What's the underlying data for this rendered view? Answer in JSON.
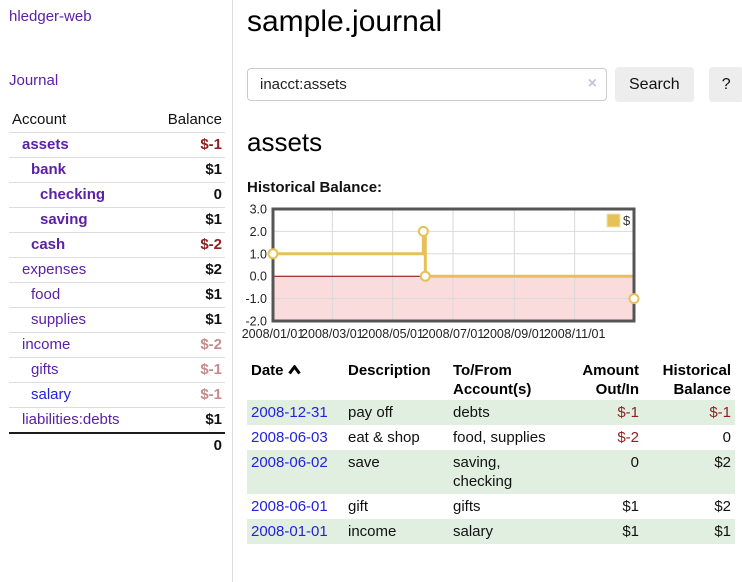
{
  "app_title": "hledger-web",
  "colors": {
    "link_purple": "#5b21a6",
    "link_blue": "#2323d8",
    "negative_red": "#8e1f1f",
    "faded_negative_red": "#c58b8b",
    "row_stripe_green": "#e1efe1",
    "chart_line_gold": "#e6c158",
    "chart_negative_pink": "#fadcdc"
  },
  "sidebar": {
    "journal_link": "Journal",
    "account_header": "Account",
    "balance_header": "Balance",
    "accounts": [
      {
        "name": "assets",
        "balance": "$-1",
        "depth": 0,
        "bold": true,
        "balance_style": "neg"
      },
      {
        "name": "bank",
        "balance": "$1",
        "depth": 1,
        "bold": true,
        "balance_style": "pos"
      },
      {
        "name": "checking",
        "balance": "0",
        "depth": 2,
        "bold": true,
        "balance_style": "pos"
      },
      {
        "name": "saving",
        "balance": "$1",
        "depth": 2,
        "bold": true,
        "balance_style": "pos"
      },
      {
        "name": "cash",
        "balance": "$-2",
        "depth": 1,
        "bold": true,
        "balance_style": "neg"
      },
      {
        "name": "expenses",
        "balance": "$2",
        "depth": 0,
        "bold": false,
        "balance_style": "pos"
      },
      {
        "name": "food",
        "balance": "$1",
        "depth": 1,
        "bold": false,
        "balance_style": "pos"
      },
      {
        "name": "supplies",
        "balance": "$1",
        "depth": 1,
        "bold": false,
        "balance_style": "pos"
      },
      {
        "name": "income",
        "balance": "$-2",
        "depth": 0,
        "bold": false,
        "balance_style": "neg-faded"
      },
      {
        "name": "gifts",
        "balance": "$-1",
        "depth": 1,
        "bold": false,
        "balance_style": "neg-faded"
      },
      {
        "name": "salary",
        "balance": "$-1",
        "depth": 1,
        "bold": false,
        "balance_style": "neg-faded",
        "link_color": "blue"
      },
      {
        "name": "liabilities:debts",
        "balance": "$1",
        "depth": 0,
        "bold": false,
        "balance_style": "pos"
      }
    ],
    "total": "0"
  },
  "main": {
    "title": "sample.journal",
    "search": {
      "value": "inacct:assets",
      "clear_icon": "×",
      "search_button": "Search",
      "help_button": "?"
    },
    "account_heading": "assets",
    "chart_title": "Historical Balance:"
  },
  "chart_data": {
    "type": "line",
    "step": true,
    "title": "Historical Balance",
    "x_range": [
      "2008-01-01",
      "2008-12-31"
    ],
    "ylim": [
      -2,
      3
    ],
    "y_ticks": [
      3,
      2,
      1,
      0,
      -1,
      -2
    ],
    "x_ticks": [
      {
        "date": "2008-01-01",
        "label": "2008/01/01"
      },
      {
        "date": "2008-03-01",
        "label": "2008/03/01"
      },
      {
        "date": "2008-05-01",
        "label": "2008/05/01"
      },
      {
        "date": "2008-07-01",
        "label": "2008/07/01"
      },
      {
        "date": "2008-09-01",
        "label": "2008/09/01"
      },
      {
        "date": "2008-11-01",
        "label": "2008/11/01"
      }
    ],
    "series": [
      {
        "name": "$",
        "color": "#e6c158",
        "points": [
          {
            "date": "2008-01-01",
            "value": 1
          },
          {
            "date": "2008-06-01",
            "value": 2
          },
          {
            "date": "2008-06-03",
            "value": 0
          },
          {
            "date": "2008-12-31",
            "value": -1
          }
        ]
      }
    ],
    "legend": {
      "label": "$",
      "position": "top-right",
      "swatch_color": "#e6c158"
    },
    "negative_region_color": "#fadcdc",
    "zero_line_color": "#8b0000",
    "grid": true
  },
  "register": {
    "columns": [
      {
        "label": "Date",
        "align": "left",
        "sort_icon": "chevron-up-icon"
      },
      {
        "label": "Description",
        "align": "left"
      },
      {
        "label": "To/From Account(s)",
        "align": "left"
      },
      {
        "label": "Amount Out/In",
        "align": "right"
      },
      {
        "label": "Historical Balance",
        "align": "right"
      }
    ],
    "rows": [
      {
        "date": "2008-12-31",
        "description": "pay off",
        "accounts": "debts",
        "amount": "$-1",
        "amount_negative": true,
        "balance": "$-1",
        "balance_negative": true
      },
      {
        "date": "2008-06-03",
        "description": "eat & shop",
        "accounts": "food, supplies",
        "amount": "$-2",
        "amount_negative": true,
        "balance": "0",
        "balance_negative": false
      },
      {
        "date": "2008-06-02",
        "description": "save",
        "accounts": "saving, checking",
        "amount": "0",
        "amount_negative": false,
        "balance": "$2",
        "balance_negative": false
      },
      {
        "date": "2008-06-01",
        "description": "gift",
        "accounts": "gifts",
        "amount": "$1",
        "amount_negative": false,
        "balance": "$2",
        "balance_negative": false
      },
      {
        "date": "2008-01-01",
        "description": "income",
        "accounts": "salary",
        "amount": "$1",
        "amount_negative": false,
        "balance": "$1",
        "balance_negative": false
      }
    ]
  }
}
